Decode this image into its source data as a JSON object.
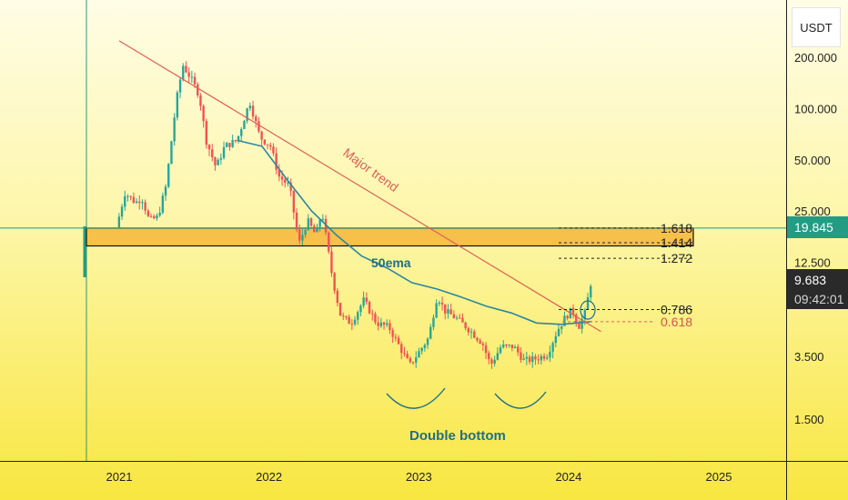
{
  "currency": "USDT",
  "current_price": "9.683",
  "countdown": "09:42:01",
  "level_price": "19.845",
  "colors": {
    "up": "#26a69a",
    "down": "#ef5350",
    "ema": "#2a86a0",
    "trendline": "#e06055",
    "band_fill": "#f6c04a",
    "level_line": "#239c83",
    "ann_teal": "#1f6f8b"
  },
  "annotations": {
    "major_trend": "Major trend",
    "ema": "50ema",
    "double_bottom": "Double bottom"
  },
  "chart_data": {
    "type": "candlestick",
    "scale": "log",
    "y_ticks": [
      "200.000",
      "100.000",
      "50.000",
      "25.000",
      "12.500",
      "3.500",
      "1.500"
    ],
    "x_ticks": [
      "2021",
      "2022",
      "2023",
      "2024",
      "2025"
    ],
    "fib_levels": [
      {
        "label": "1.618",
        "value": 19.845
      },
      {
        "label": "1.414",
        "value": 16.3
      },
      {
        "label": "1.272",
        "value": 13.2
      },
      {
        "label": "0.786",
        "value": 6.6
      },
      {
        "label": "0.618",
        "value": 5.6
      }
    ],
    "resistance_zone": [
      15.6,
      19.845
    ],
    "ema_label": "50ema",
    "trendline_label": "Major trend",
    "pattern_label": "Double bottom",
    "price_path": [
      [
        "2020-12-25",
        20
      ],
      [
        "2021-01-15",
        32
      ],
      [
        "2021-02-10",
        28
      ],
      [
        "2021-02-25",
        30
      ],
      [
        "2021-03-15",
        22
      ],
      [
        "2021-04-05",
        23
      ],
      [
        "2021-04-25",
        35
      ],
      [
        "2021-05-20",
        110
      ],
      [
        "2021-06-05",
        180
      ],
      [
        "2021-06-25",
        150
      ],
      [
        "2021-07-15",
        120
      ],
      [
        "2021-08-01",
        65
      ],
      [
        "2021-08-25",
        45
      ],
      [
        "2021-09-15",
        60
      ],
      [
        "2021-10-15",
        65
      ],
      [
        "2021-11-15",
        110
      ],
      [
        "2021-12-10",
        68
      ],
      [
        "2022-01-05",
        60
      ],
      [
        "2022-01-25",
        40
      ],
      [
        "2022-02-20",
        35
      ],
      [
        "2022-03-15",
        16
      ],
      [
        "2022-04-05",
        22
      ],
      [
        "2022-04-25",
        18
      ],
      [
        "2022-05-10",
        25
      ],
      [
        "2022-06-05",
        10
      ],
      [
        "2022-06-25",
        6
      ],
      [
        "2022-07-20",
        5.5
      ],
      [
        "2022-08-20",
        7.5
      ],
      [
        "2022-09-20",
        5.5
      ],
      [
        "2022-10-20",
        5.2
      ],
      [
        "2022-11-15",
        4
      ],
      [
        "2022-12-10",
        3.1
      ],
      [
        "2022-12-25",
        3.5
      ],
      [
        "2023-01-25",
        4.5
      ],
      [
        "2023-02-15",
        8
      ],
      [
        "2023-03-05",
        6.5
      ],
      [
        "2023-04-05",
        5.8
      ],
      [
        "2023-05-05",
        5
      ],
      [
        "2023-06-05",
        4.2
      ],
      [
        "2023-06-25",
        3.1
      ],
      [
        "2023-07-20",
        4
      ],
      [
        "2023-08-20",
        4
      ],
      [
        "2023-09-15",
        3.3
      ],
      [
        "2023-10-15",
        3.4
      ],
      [
        "2023-11-10",
        3.6
      ],
      [
        "2023-12-05",
        5
      ],
      [
        "2023-12-25",
        6
      ],
      [
        "2024-01-10",
        6.6
      ],
      [
        "2024-01-25",
        5.2
      ],
      [
        "2024-02-10",
        6.3
      ],
      [
        "2024-02-25",
        9.683
      ]
    ],
    "ema_50": [
      [
        "2021-10-15",
        65
      ],
      [
        "2021-12-15",
        60
      ],
      [
        "2022-02-15",
        38
      ],
      [
        "2022-04-15",
        25
      ],
      [
        "2022-06-15",
        18
      ],
      [
        "2022-08-15",
        13.6
      ],
      [
        "2022-10-15",
        11.6
      ],
      [
        "2022-12-15",
        9.5
      ],
      [
        "2023-02-15",
        8.7
      ],
      [
        "2023-04-15",
        7.8
      ],
      [
        "2023-06-15",
        6.9
      ],
      [
        "2023-08-15",
        6.3
      ],
      [
        "2023-10-15",
        5.5
      ],
      [
        "2023-12-15",
        5.4
      ],
      [
        "2024-02-25",
        5.6
      ]
    ],
    "trendline": [
      [
        "2021-01-01",
        250
      ],
      [
        "2024-03-20",
        4.9
      ]
    ]
  }
}
